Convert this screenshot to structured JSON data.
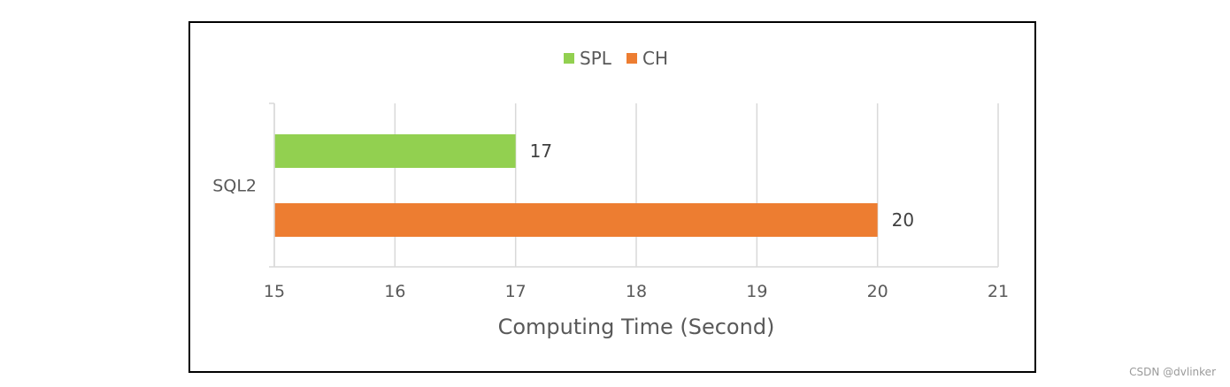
{
  "chart_data": {
    "type": "bar",
    "orientation": "horizontal",
    "categories": [
      "SQL2"
    ],
    "series": [
      {
        "name": "SPL",
        "values": [
          17
        ],
        "color": "#92d050"
      },
      {
        "name": "CH",
        "values": [
          20
        ],
        "color": "#ed7d31"
      }
    ],
    "xlabel": "Computing Time (Second)",
    "ylabel": "",
    "xlim": [
      15,
      21
    ],
    "xticks": [
      "15",
      "16",
      "17",
      "18",
      "19",
      "20",
      "21"
    ],
    "data_labels": [
      "17",
      "20"
    ],
    "grid": true,
    "legend_position": "top-center",
    "gridline_color": "#d9d9d9"
  },
  "watermark": "CSDN @dvlinker"
}
